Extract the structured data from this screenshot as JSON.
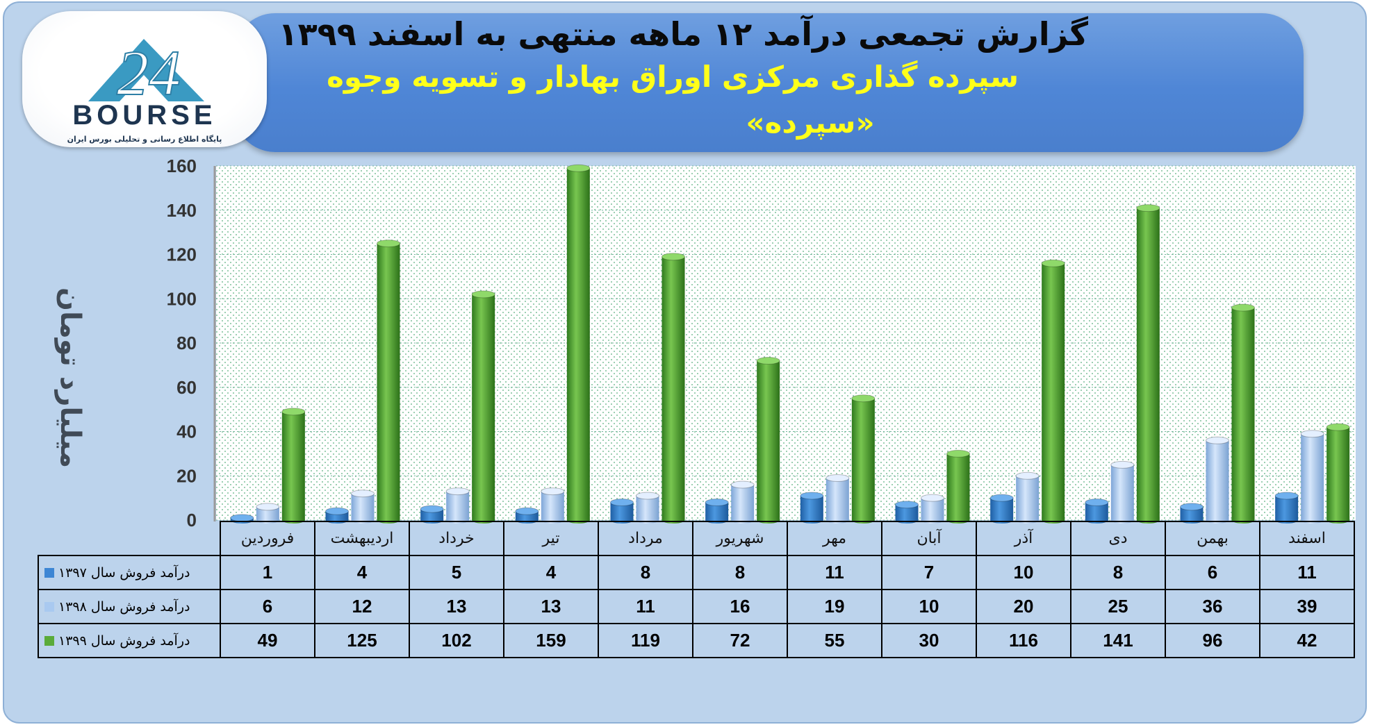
{
  "title": "گزارش تجمعی درآمد ۱۲ ماهه منتهی به اسفند ۱۳۹۹",
  "subtitle": "سپرده گذاری مرکزی اوراق بهادار و تسویه وجوه",
  "subtitle2": "«سپرده»",
  "logo": {
    "name": "BOURSE",
    "number": "24",
    "tagline": "پایگاه اطلاع رسانی و تحلیلی بورس ایران"
  },
  "colors": {
    "s1397": "#3d86d4",
    "s1398": "#a9c9f0",
    "s1399": "#5aab3a",
    "plot_bg": "#ffffff",
    "grid": "#6fb39a"
  },
  "chart_data": {
    "type": "bar",
    "style": "3d-cylinder",
    "ylabel": "میلیارد تومان",
    "ylim": [
      0,
      160
    ],
    "yticks": [
      0,
      20,
      40,
      60,
      80,
      100,
      120,
      140,
      160
    ],
    "grid": true,
    "categories": [
      "فروردین",
      "اردیبهشت",
      "خرداد",
      "تیر",
      "مرداد",
      "شهریور",
      "مهر",
      "آبان",
      "آذر",
      "دی",
      "بهمن",
      "اسفند"
    ],
    "series": [
      {
        "name": "درآمد فروش سال ۱۳۹۷",
        "values": [
          1,
          4,
          5,
          4,
          8,
          8,
          11,
          7,
          10,
          8,
          6,
          11
        ]
      },
      {
        "name": "درآمد فروش سال ۱۳۹۸",
        "values": [
          6,
          12,
          13,
          13,
          11,
          16,
          19,
          10,
          20,
          25,
          36,
          39
        ]
      },
      {
        "name": "درآمد فروش سال ۱۳۹۹",
        "values": [
          49,
          125,
          102,
          159,
          119,
          72,
          55,
          30,
          116,
          141,
          96,
          42
        ]
      }
    ],
    "data_table": true
  }
}
